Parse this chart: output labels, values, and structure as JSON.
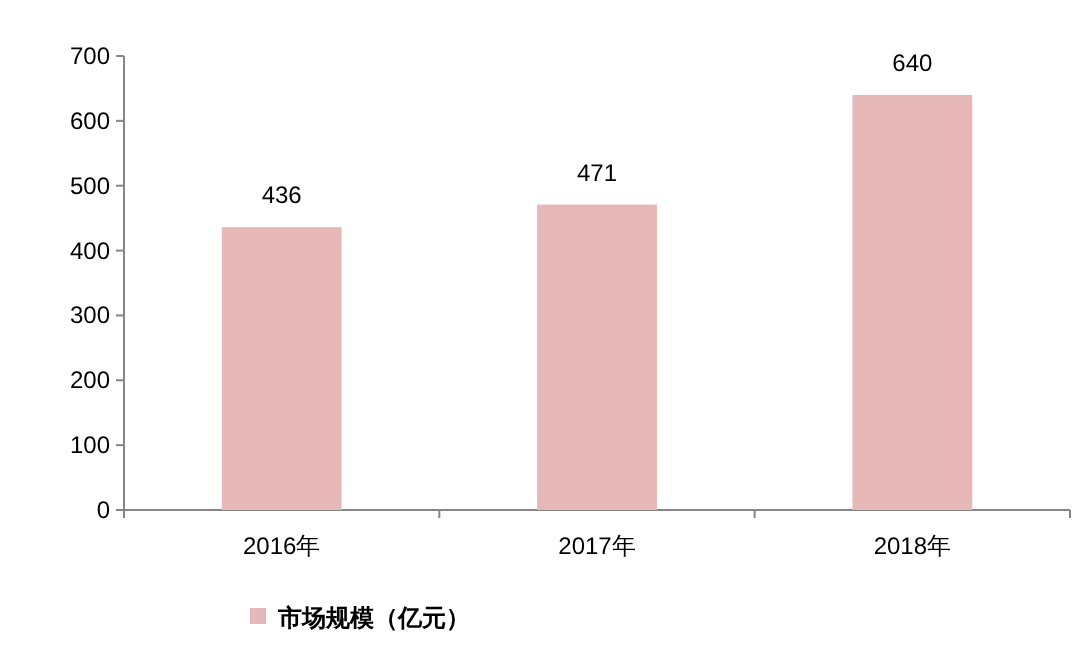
{
  "chart_data": {
    "type": "bar",
    "categories": [
      "2016年",
      "2017年",
      "2018年"
    ],
    "series": [
      {
        "name": "市场规模（亿元）",
        "color": "#e6b9b8",
        "values": [
          436,
          471,
          640
        ]
      }
    ],
    "ylim": [
      0,
      700
    ],
    "yticks": [
      0,
      100,
      200,
      300,
      400,
      500,
      600,
      700
    ],
    "data_labels": true,
    "legend": "bottom"
  }
}
